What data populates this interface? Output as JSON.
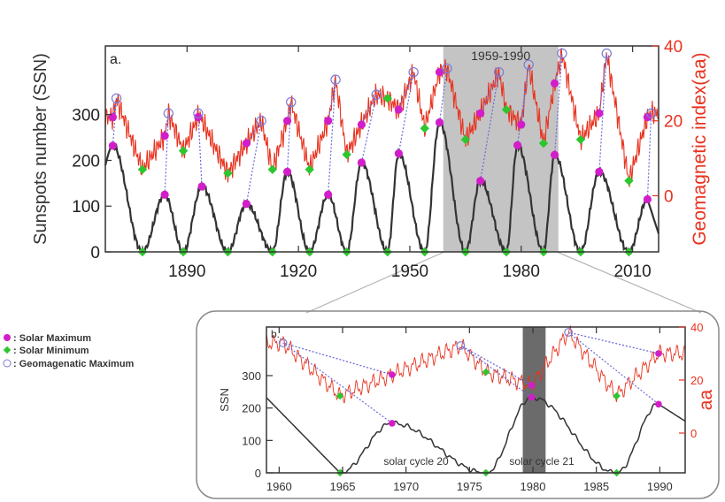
{
  "legend": [
    {
      "label": "Solar Maximum",
      "marker": "filled-circle",
      "color": "#d21ec8"
    },
    {
      "label": "Solar Minimum",
      "marker": "filled-diamond",
      "color": "#2ec62e"
    },
    {
      "label": "Geomagenatic Maximum",
      "marker": "open-circle",
      "color": "#7b7bd6"
    }
  ],
  "colors": {
    "ssn": "#333333",
    "aa": "#e8321e",
    "max": "#d21ec8",
    "min": "#2ec62e",
    "geomax": "#7b7bd6",
    "shade": "#c4c4c4",
    "dark_shade": "#6b6b6b"
  },
  "chart_data": [
    {
      "type": "line",
      "panel_label": "a.",
      "ylabel": "Sunspots number (SSN)",
      "y2label": "Geomagnetic index(aa)",
      "xlim": [
        1868,
        2017
      ],
      "ylim": [
        0,
        450
      ],
      "y2lim": [
        -15,
        40
      ],
      "xticks": [
        "1890",
        "1920",
        "1950",
        "1980",
        "2010"
      ],
      "yticks": [
        "0",
        "100",
        "200",
        "300"
      ],
      "y2ticks": [
        "0",
        "20",
        "40"
      ],
      "shaded_interval": {
        "label": "1959-1990",
        "x": [
          1959,
          1990
        ]
      },
      "solar_maximum": [
        [
          1870,
          232
        ],
        [
          1884,
          125
        ],
        [
          1894,
          143
        ],
        [
          1906,
          105
        ],
        [
          1917,
          175
        ],
        [
          1928,
          125
        ],
        [
          1937,
          195
        ],
        [
          1947,
          215
        ],
        [
          1958,
          283
        ],
        [
          1969,
          155
        ],
        [
          1979,
          233
        ],
        [
          1989,
          212
        ],
        [
          2001,
          175
        ],
        [
          2014,
          115
        ]
      ],
      "solar_minimum": [
        [
          1878,
          0
        ],
        [
          1889,
          0
        ],
        [
          1901,
          0
        ],
        [
          1913,
          0
        ],
        [
          1923,
          0
        ],
        [
          1933,
          0
        ],
        [
          1944,
          0
        ],
        [
          1954,
          0
        ],
        [
          1965,
          0
        ],
        [
          1976,
          0
        ],
        [
          1986,
          0
        ],
        [
          1996,
          0
        ],
        [
          2009,
          0
        ]
      ],
      "aa_solar_maximum": [
        [
          1870,
          21
        ],
        [
          1884,
          16
        ],
        [
          1893,
          21
        ],
        [
          1906,
          14
        ],
        [
          1917,
          20
        ],
        [
          1928,
          20
        ],
        [
          1937,
          19
        ],
        [
          1947,
          23
        ],
        [
          1958,
          33
        ],
        [
          1969,
          22
        ],
        [
          1980,
          19
        ],
        [
          1989,
          30
        ],
        [
          2001,
          22
        ],
        [
          2014,
          21
        ]
      ],
      "aa_solar_minimum": [
        [
          1878,
          7
        ],
        [
          1889,
          12
        ],
        [
          1901,
          6
        ],
        [
          1913,
          7
        ],
        [
          1923,
          7
        ],
        [
          1933,
          11
        ],
        [
          1944,
          26
        ],
        [
          1954,
          18
        ],
        [
          1965,
          15
        ],
        [
          1976,
          23
        ],
        [
          1986,
          14
        ],
        [
          1996,
          15
        ],
        [
          2009,
          4
        ]
      ],
      "geomagnetic_maximum": [
        [
          1871,
          26
        ],
        [
          1885,
          22
        ],
        [
          1893,
          22
        ],
        [
          1910,
          20
        ],
        [
          1918,
          25
        ],
        [
          1930,
          31
        ],
        [
          1941,
          27
        ],
        [
          1951,
          33
        ],
        [
          1960,
          34
        ],
        [
          1974,
          33
        ],
        [
          1982,
          35
        ],
        [
          1991,
          38
        ],
        [
          2003,
          38
        ],
        [
          2015,
          22
        ]
      ]
    },
    {
      "type": "line",
      "panel_label": "b.",
      "ylabel": "SSN",
      "y2label": "aa",
      "xlim": [
        1959,
        1992
      ],
      "ylim": [
        0,
        450
      ],
      "y2lim": [
        -15,
        40
      ],
      "xticks": [
        "1960",
        "1965",
        "1970",
        "1975",
        "1980",
        "1985",
        "1990"
      ],
      "yticks": [
        "0",
        "100",
        "200",
        "300"
      ],
      "y2ticks": [
        "0",
        "20",
        "40"
      ],
      "shaded_interval": {
        "x": [
          1979.2,
          1981.0
        ]
      },
      "annotations": [
        "solar cycle 20",
        "solar cycle 21"
      ],
      "solar_maximum": [
        [
          1968.9,
          153
        ],
        [
          1979.9,
          233
        ],
        [
          1989.9,
          212
        ]
      ],
      "solar_minimum": [
        [
          1964.8,
          0
        ],
        [
          1976.3,
          0
        ],
        [
          1986.6,
          0
        ]
      ],
      "aa_solar_maximum": [
        [
          1968.9,
          22
        ],
        [
          1979.9,
          18
        ],
        [
          1989.9,
          30
        ]
      ],
      "aa_solar_minimum": [
        [
          1964.8,
          14
        ],
        [
          1976.3,
          23
        ],
        [
          1986.6,
          14
        ]
      ],
      "geomagnetic_maximum": [
        [
          1960.3,
          34
        ],
        [
          1974.3,
          33
        ],
        [
          1982.8,
          38
        ]
      ]
    }
  ]
}
